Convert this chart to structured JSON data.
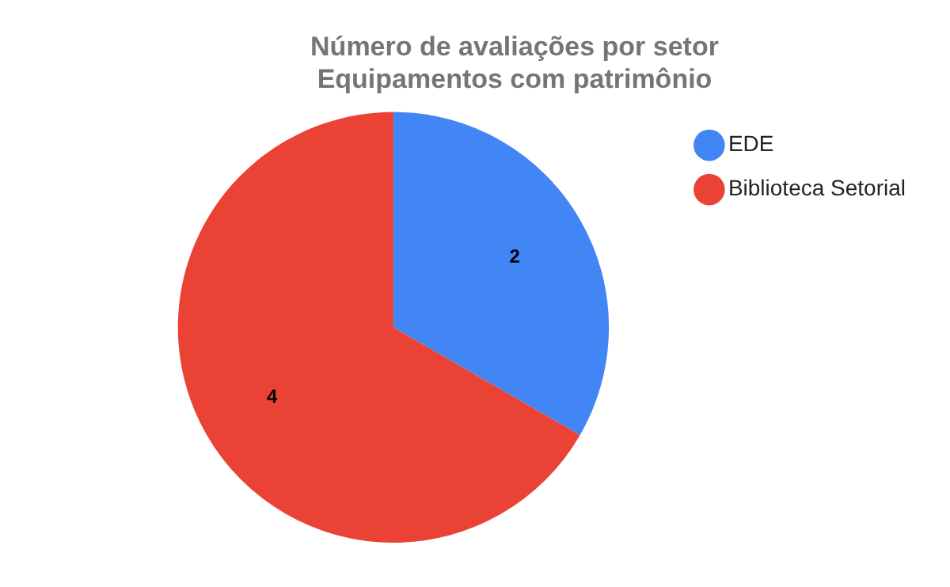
{
  "chart_data": {
    "type": "pie",
    "title": "Número de avaliações por setor\nEquipamentos com patrimônio",
    "categories": [
      "EDE",
      "Biblioteca Setorial"
    ],
    "values": [
      2,
      4
    ],
    "colors": [
      "#4285f4",
      "#ea4335"
    ],
    "data_labels": true,
    "legend": "right"
  }
}
